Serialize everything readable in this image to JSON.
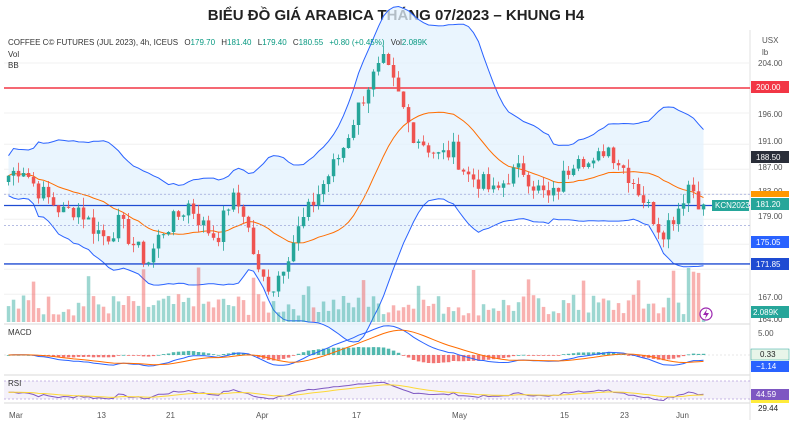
{
  "title": "BIỂU ĐỒ GIÁ ARABICA THÁNG 07/2023 – KHUNG H4",
  "legend": {
    "symbol": "COFFEE C© FUTURES (JUL 2023), 4h, ICEUS",
    "o_label": "O",
    "o_value": "179.70",
    "h_label": "H",
    "h_value": "181.40",
    "l_label": "L",
    "l_value": "179.40",
    "c_label": "C",
    "c_value": "180.55",
    "change": "+0.80 (+0.45%)",
    "vol_label": "Vol",
    "vol_value": "2.089K",
    "vol": "Vol",
    "bb": "BB",
    "macd": "MACD",
    "rsi": "RSI"
  },
  "axis": {
    "currency": "USX",
    "unit": "lb",
    "x_ticks": [
      "Mar",
      "13",
      "21",
      "Apr",
      "17",
      "May",
      "15",
      "23",
      "Jun"
    ],
    "price_ticks": [
      "204.00",
      "200.00",
      "196.00",
      "191.00",
      "187.00",
      "183.00",
      "179.00",
      "167.00",
      "164.00"
    ],
    "macd_ticks": [
      "5.00"
    ],
    "rsi_ticks": []
  },
  "tags": {
    "resistance_top": "200.00",
    "level_188": "188.50",
    "price_pill": "KCN2023",
    "last_price": "181.20",
    "level_175": "175.05",
    "support": "171.85",
    "volume": "2.089K",
    "macd_a": "0.33",
    "macd_b": "−1.14",
    "rsi_a": "44.59",
    "rsi_b": "29.44"
  },
  "colors": {
    "up": "#26a69a",
    "down": "#ef5350",
    "band": "#2962ff",
    "band_fill": "#e3f2fd",
    "basis": "#ff6d00",
    "resistance": "#f23645",
    "support": "#1e4bd2",
    "rsi_line": "#7e57c2"
  },
  "chart_data": {
    "type": "candlestick",
    "title": "BIỂU ĐỒ GIÁ ARABICA THÁNG 07/2023 – KHUNG H4",
    "instrument": "COFFEE C© FUTURES (JUL 2023), 4h, ICEUS",
    "unit": "USX / lb",
    "x_labels": [
      "Mar",
      "13",
      "21",
      "Apr",
      "17",
      "May",
      "15",
      "23",
      "Jun"
    ],
    "ylim": [
      164,
      206
    ],
    "horizontal_levels": {
      "resistance": 200.0,
      "support": 171.85,
      "last": 181.2
    },
    "close_path": [
      {
        "x": "Mar",
        "close": 186.0
      },
      {
        "x": "Mar",
        "close": 187.5
      },
      {
        "x": "Mar",
        "close": 184.0
      },
      {
        "x": "Mar",
        "close": 182.0
      },
      {
        "x": "Mar",
        "close": 180.0
      },
      {
        "x": "13",
        "close": 181.0
      },
      {
        "x": "13",
        "close": 178.0
      },
      {
        "x": "13",
        "close": 176.0
      },
      {
        "x": "13",
        "close": 178.5
      },
      {
        "x": "13",
        "close": 175.0
      },
      {
        "x": "13",
        "close": 172.0
      },
      {
        "x": "21",
        "close": 177.0
      },
      {
        "x": "21",
        "close": 179.0
      },
      {
        "x": "21",
        "close": 181.5
      },
      {
        "x": "21",
        "close": 178.0
      },
      {
        "x": "21",
        "close": 176.0
      },
      {
        "x": "21",
        "close": 182.5
      },
      {
        "x": "Apr",
        "close": 180.0
      },
      {
        "x": "Apr",
        "close": 170.0
      },
      {
        "x": "Apr",
        "close": 168.0
      },
      {
        "x": "Apr",
        "close": 173.0
      },
      {
        "x": "Apr",
        "close": 178.0
      },
      {
        "x": "Apr",
        "close": 182.0
      },
      {
        "x": "Apr",
        "close": 186.0
      },
      {
        "x": "Apr",
        "close": 190.0
      },
      {
        "x": "17",
        "close": 196.0
      },
      {
        "x": "17",
        "close": 201.0
      },
      {
        "x": "17",
        "close": 204.0
      },
      {
        "x": "17",
        "close": 199.0
      },
      {
        "x": "17",
        "close": 193.0
      },
      {
        "x": "17",
        "close": 191.0
      },
      {
        "x": "17",
        "close": 189.0
      },
      {
        "x": "May",
        "close": 190.0
      },
      {
        "x": "May",
        "close": 186.0
      },
      {
        "x": "May",
        "close": 185.0
      },
      {
        "x": "May",
        "close": 183.0
      },
      {
        "x": "May",
        "close": 186.0
      },
      {
        "x": "May",
        "close": 187.0
      },
      {
        "x": "May",
        "close": 184.0
      },
      {
        "x": "15",
        "close": 182.0
      },
      {
        "x": "15",
        "close": 186.0
      },
      {
        "x": "15",
        "close": 190.0
      },
      {
        "x": "15",
        "close": 187.0
      },
      {
        "x": "23",
        "close": 191.0
      },
      {
        "x": "23",
        "close": 188.0
      },
      {
        "x": "23",
        "close": 185.0
      },
      {
        "x": "23",
        "close": 181.0
      },
      {
        "x": "23",
        "close": 177.0
      },
      {
        "x": "Jun",
        "close": 180.0
      },
      {
        "x": "Jun",
        "close": 185.0
      },
      {
        "x": "Jun",
        "close": 180.55
      }
    ],
    "indicators": {
      "bollinger_bands": true,
      "volume_last": "2.089K",
      "macd": {
        "values": [
          0.33,
          -1.14
        ]
      },
      "rsi": {
        "values": [
          44.59,
          29.44
        ]
      }
    }
  }
}
